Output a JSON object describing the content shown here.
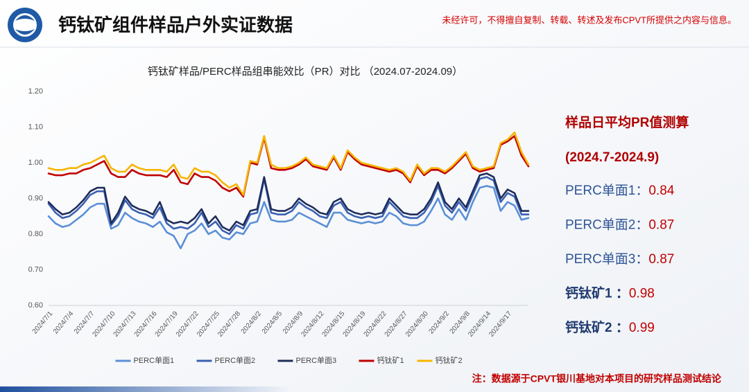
{
  "header": {
    "title": "钙钛矿组件样品户外实证数据",
    "notice": "未经许可，不得擅自复制、转载、转述及发布CPVT所提供之内容与信息。"
  },
  "chart_data": {
    "type": "line",
    "title": "钙钛矿样品/PERC样品组串能效比（PR）对比 （2024.07-2024.09）",
    "categories": [
      "2024/7/1",
      null,
      null,
      "2024/7/4",
      null,
      null,
      "2024/7/7",
      null,
      null,
      "2024/7/10",
      null,
      null,
      "2024/7/13",
      null,
      null,
      "2024/7/16",
      null,
      null,
      "2024/7/19",
      null,
      null,
      "2024/7/22",
      null,
      null,
      "2024/7/25",
      null,
      null,
      "2024/7/28",
      null,
      null,
      "2024/8/2",
      null,
      null,
      "2024/8/5",
      null,
      null,
      "2024/8/9",
      null,
      null,
      "2024/8/12",
      null,
      null,
      "2024/8/15",
      null,
      null,
      "2024/8/19",
      null,
      null,
      "2024/8/22",
      null,
      null,
      "2024/8/27",
      null,
      null,
      "2024/8/30",
      null,
      null,
      "2024/9/2",
      null,
      null,
      "2024/9/8",
      null,
      null,
      "2024/9/14",
      null,
      null,
      "2024/9/17",
      null,
      null,
      null
    ],
    "series": [
      {
        "name": "PERC单面1",
        "color": "#5b8fd6",
        "values": [
          0.85,
          0.83,
          0.82,
          0.825,
          0.84,
          0.855,
          0.875,
          0.885,
          0.885,
          0.815,
          0.825,
          0.86,
          0.845,
          0.835,
          0.83,
          0.82,
          0.835,
          0.805,
          0.795,
          0.76,
          0.8,
          0.81,
          0.83,
          0.8,
          0.81,
          0.79,
          0.785,
          0.805,
          0.8,
          0.83,
          0.835,
          0.89,
          0.84,
          0.835,
          0.835,
          0.84,
          0.86,
          0.85,
          0.84,
          0.83,
          0.82,
          0.86,
          0.86,
          0.84,
          0.835,
          0.83,
          0.835,
          0.83,
          0.835,
          0.86,
          0.85,
          0.83,
          0.825,
          0.825,
          0.835,
          0.865,
          0.9,
          0.855,
          0.84,
          0.87,
          0.84,
          0.89,
          0.93,
          0.935,
          0.93,
          0.865,
          0.89,
          0.88,
          0.84,
          0.845
        ]
      },
      {
        "name": "PERC单面2",
        "color": "#3a60b0",
        "values": [
          0.885,
          0.86,
          0.845,
          0.85,
          0.865,
          0.885,
          0.91,
          0.92,
          0.92,
          0.825,
          0.85,
          0.895,
          0.87,
          0.86,
          0.855,
          0.845,
          0.875,
          0.83,
          0.815,
          0.82,
          0.815,
          0.83,
          0.86,
          0.82,
          0.835,
          0.81,
          0.8,
          0.825,
          0.815,
          0.855,
          0.86,
          0.955,
          0.86,
          0.855,
          0.855,
          0.865,
          0.89,
          0.875,
          0.865,
          0.85,
          0.845,
          0.88,
          0.89,
          0.86,
          0.85,
          0.845,
          0.85,
          0.845,
          0.85,
          0.89,
          0.87,
          0.85,
          0.845,
          0.845,
          0.86,
          0.89,
          0.935,
          0.88,
          0.86,
          0.89,
          0.865,
          0.91,
          0.955,
          0.96,
          0.95,
          0.89,
          0.915,
          0.905,
          0.855,
          0.855
        ]
      },
      {
        "name": "PERC单面3",
        "color": "#1f2d5c",
        "values": [
          0.89,
          0.87,
          0.855,
          0.86,
          0.875,
          0.895,
          0.92,
          0.93,
          0.93,
          0.83,
          0.86,
          0.905,
          0.88,
          0.87,
          0.865,
          0.855,
          0.89,
          0.84,
          0.83,
          0.835,
          0.83,
          0.845,
          0.87,
          0.83,
          0.85,
          0.82,
          0.81,
          0.835,
          0.825,
          0.865,
          0.87,
          0.96,
          0.87,
          0.865,
          0.865,
          0.875,
          0.9,
          0.885,
          0.875,
          0.86,
          0.855,
          0.89,
          0.9,
          0.87,
          0.86,
          0.855,
          0.86,
          0.855,
          0.86,
          0.9,
          0.88,
          0.86,
          0.855,
          0.855,
          0.87,
          0.9,
          0.945,
          0.89,
          0.87,
          0.9,
          0.875,
          0.92,
          0.965,
          0.97,
          0.96,
          0.9,
          0.925,
          0.915,
          0.865,
          0.865
        ]
      },
      {
        "name": "钙钛矿1",
        "color": "#c00000",
        "values": [
          0.97,
          0.965,
          0.965,
          0.97,
          0.97,
          0.98,
          0.985,
          0.995,
          1.005,
          0.97,
          0.96,
          0.96,
          0.98,
          0.97,
          0.965,
          0.965,
          0.965,
          0.96,
          0.98,
          0.945,
          0.94,
          0.97,
          0.96,
          0.96,
          0.95,
          0.93,
          0.92,
          0.93,
          0.905,
          1.0,
          0.995,
          1.07,
          0.985,
          0.98,
          0.98,
          0.985,
          0.995,
          1.01,
          0.99,
          0.985,
          0.98,
          1.015,
          0.98,
          1.03,
          1.01,
          0.995,
          0.99,
          0.985,
          0.98,
          0.975,
          0.98,
          0.97,
          0.945,
          0.99,
          0.965,
          0.98,
          0.98,
          0.97,
          0.985,
          1.005,
          1.025,
          0.985,
          0.975,
          0.98,
          0.985,
          1.05,
          1.06,
          1.075,
          1.02,
          0.99
        ]
      },
      {
        "name": "钙钛矿2",
        "color": "#f7b500",
        "values": [
          0.985,
          0.98,
          0.98,
          0.985,
          0.985,
          0.995,
          1.0,
          1.01,
          1.02,
          0.985,
          0.975,
          0.975,
          0.995,
          0.985,
          0.98,
          0.98,
          0.98,
          0.975,
          0.995,
          0.96,
          0.955,
          0.985,
          0.975,
          0.975,
          0.965,
          0.945,
          0.93,
          0.94,
          0.91,
          1.005,
          1.0,
          1.075,
          0.995,
          0.985,
          0.985,
          0.99,
          1.0,
          1.015,
          0.995,
          0.99,
          0.985,
          1.02,
          0.985,
          1.035,
          1.015,
          1.0,
          0.995,
          0.99,
          0.985,
          0.98,
          0.985,
          0.975,
          0.95,
          0.995,
          0.97,
          0.985,
          0.985,
          0.975,
          0.99,
          1.01,
          1.03,
          0.99,
          0.98,
          0.985,
          0.99,
          1.055,
          1.065,
          1.085,
          1.03,
          0.995
        ]
      }
    ],
    "ylim": [
      0.6,
      1.2
    ],
    "yticks": [
      {
        "value": 0.6,
        "label": "0.60"
      },
      {
        "value": 0.7,
        "label": "0.70"
      },
      {
        "value": 0.8,
        "label": "0.80"
      },
      {
        "value": 0.9,
        "label": "0.90"
      },
      {
        "value": 1.0,
        "label": "1.00"
      },
      {
        "value": 1.1,
        "label": "1.10"
      },
      {
        "value": 1.2,
        "label": "1.20"
      }
    ],
    "grid": false,
    "legend": "bottom"
  },
  "panel": {
    "heading": "样品日平均PR值测算",
    "period": "(2024.7-2024.9)",
    "items": [
      {
        "label": "PERC单面1：",
        "value": 0.84
      },
      {
        "label": "PERC单面2：",
        "value": 0.87
      },
      {
        "label": "PERC单面3：",
        "value": 0.87
      },
      {
        "label": "钙钛矿1 ：",
        "value": 0.98
      },
      {
        "label": "钙钛矿2 ：",
        "value": 0.99
      }
    ]
  },
  "footer": {
    "note": "注：数据源于CPVT银川基地对本项目的研究样品测试结论"
  }
}
